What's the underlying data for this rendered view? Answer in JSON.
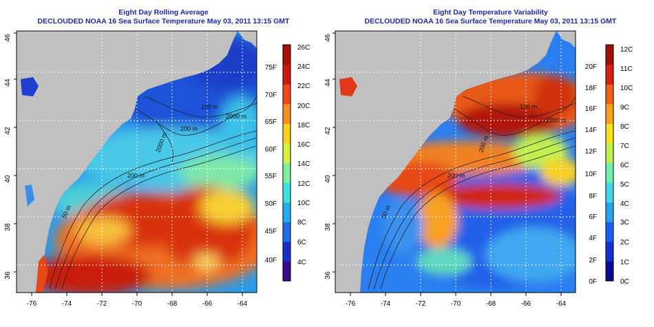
{
  "panels": [
    {
      "title1": "Eight Day Rolling Average",
      "title2": "DECLOUDED NOAA 16 Sea Surface Temperature May 03, 2011 13:15 GMT",
      "lat_ticks": [
        "36",
        "38",
        "40",
        "42",
        "44",
        "46"
      ],
      "lon_ticks": [
        "-76",
        "-74",
        "-72",
        "-70",
        "-68",
        "-66",
        "-64"
      ],
      "contour_labels": [
        "100 m",
        "2000 m",
        "200 m",
        "2000 m",
        "200 m",
        "50 m"
      ],
      "colorbar": {
        "celsius": [
          "26C",
          "24C",
          "22C",
          "20C",
          "18C",
          "16C",
          "14C",
          "12C",
          "10C",
          "8C",
          "6C",
          "4C"
        ],
        "fahrenheit": [
          "75F",
          "70F",
          "65F",
          "60F",
          "55F",
          "50F",
          "45F",
          "40F"
        ],
        "colors": [
          "#3a0a8a",
          "#1c2ec8",
          "#1f6ee8",
          "#22b0f0",
          "#3ee0e0",
          "#7ef0a0",
          "#d8f040",
          "#f8d020",
          "#f89020",
          "#f04818",
          "#d01810",
          "#a81008"
        ]
      }
    },
    {
      "title1": "Eight Day Temperature Variability",
      "title2": "DECLOUDED NOAA 16 Sea Surface Temperature May 03, 2011 13:15 GMT",
      "lat_ticks": [
        "36",
        "38",
        "40",
        "42",
        "44",
        "46"
      ],
      "lon_ticks": [
        "-76",
        "-74",
        "-72",
        "-70",
        "-68",
        "-66",
        "-64"
      ],
      "contour_labels": [
        "100 m",
        "2000 m",
        "200 m",
        "200 m",
        "50 m"
      ],
      "colorbar": {
        "celsius": [
          "12C",
          "11C",
          "10C",
          "9C",
          "8C",
          "7C",
          "6C",
          "5C",
          "4C",
          "3C",
          "2C",
          "1C",
          "0C"
        ],
        "fahrenheit": [
          "20F",
          "18F",
          "16F",
          "14F",
          "12F",
          "10F",
          "8F",
          "6F",
          "4F",
          "2F",
          "0F"
        ],
        "colors": [
          "#0a0a90",
          "#1530d0",
          "#1a60f0",
          "#2aa0f0",
          "#40d8e8",
          "#70f0b0",
          "#c0f050",
          "#f8e020",
          "#f8a020",
          "#f06018",
          "#d82010",
          "#a01008"
        ]
      }
    }
  ],
  "colors": {
    "land": "#c0c0c0",
    "title": "#1a2aa8",
    "frame": "#000000",
    "contour": "#202020",
    "grid": "#ffffff"
  }
}
